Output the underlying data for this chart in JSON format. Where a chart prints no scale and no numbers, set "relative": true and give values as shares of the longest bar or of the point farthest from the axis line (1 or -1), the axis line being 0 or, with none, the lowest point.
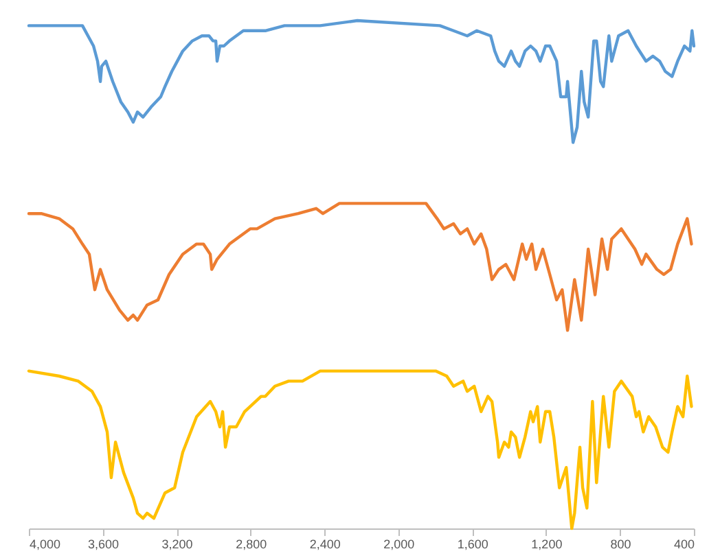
{
  "chart_data": {
    "type": "line",
    "relative": true,
    "tick_labels": "x",
    "grid": false,
    "marker": "none",
    "line_style": "solid",
    "xlim": [
      4000,
      400
    ],
    "xticks": [
      {
        "value": 4000,
        "label": "4,000"
      },
      {
        "value": 3600,
        "label": "3,600"
      },
      {
        "value": 3200,
        "label": "3,200"
      },
      {
        "value": 2800,
        "label": "2,800"
      },
      {
        "value": 2400,
        "label": "2,400"
      },
      {
        "value": 2000,
        "label": "2,000"
      },
      {
        "value": 1600,
        "label": "1,600"
      },
      {
        "value": 1200,
        "label": "1,200"
      },
      {
        "value": 800,
        "label": "800"
      },
      {
        "value": 400,
        "label": "400"
      }
    ],
    "series": [
      {
        "color": "#5b9bd5",
        "x": [
          4000,
          3784,
          3710,
          3650,
          3628,
          3613,
          3606,
          3583,
          3546,
          3502,
          3464,
          3435,
          3412,
          3382,
          3338,
          3286,
          3263,
          3226,
          3167,
          3115,
          3063,
          3025,
          3003,
          2988,
          2981,
          2966,
          2944,
          2914,
          2839,
          2765,
          2720,
          2616,
          2423,
          2222,
          1775,
          1701,
          1627,
          1575,
          1500,
          1478,
          1456,
          1426,
          1389,
          1366,
          1344,
          1314,
          1284,
          1255,
          1232,
          1203,
          1180,
          1143,
          1121,
          1091,
          1084,
          1054,
          1032,
          1009,
          994,
          972,
          942,
          927,
          905,
          890,
          860,
          845,
          808,
          756,
          712,
          659,
          622,
          585,
          555,
          518,
          488,
          451,
          421,
          410,
          400
        ],
        "values": [
          0.99,
          0.99,
          0.99,
          0.95,
          0.92,
          0.88,
          0.91,
          0.92,
          0.88,
          0.84,
          0.82,
          0.8,
          0.82,
          0.81,
          0.83,
          0.85,
          0.87,
          0.9,
          0.94,
          0.96,
          0.97,
          0.97,
          0.96,
          0.96,
          0.92,
          0.95,
          0.95,
          0.96,
          0.98,
          0.98,
          0.98,
          0.99,
          0.99,
          1.0,
          0.99,
          0.98,
          0.97,
          0.98,
          0.97,
          0.94,
          0.92,
          0.91,
          0.94,
          0.92,
          0.91,
          0.94,
          0.95,
          0.94,
          0.92,
          0.95,
          0.95,
          0.92,
          0.85,
          0.85,
          0.88,
          0.76,
          0.79,
          0.9,
          0.84,
          0.81,
          0.96,
          0.96,
          0.88,
          0.87,
          0.97,
          0.92,
          0.97,
          0.98,
          0.95,
          0.92,
          0.93,
          0.92,
          0.9,
          0.89,
          0.92,
          0.95,
          0.94,
          0.98,
          0.95
        ]
      },
      {
        "color": "#ed7d31",
        "x": [
          4000,
          3933,
          3836,
          3762,
          3710,
          3673,
          3643,
          3613,
          3576,
          3509,
          3464,
          3435,
          3412,
          3360,
          3301,
          3241,
          3167,
          3092,
          3055,
          3018,
          3010,
          2981,
          2914,
          2802,
          2765,
          2668,
          2542,
          2445,
          2408,
          2319,
          2170,
          1850,
          1790,
          1753,
          1701,
          1664,
          1627,
          1589,
          1552,
          1522,
          1493,
          1456,
          1418,
          1374,
          1329,
          1307,
          1277,
          1255,
          1218,
          1180,
          1143,
          1113,
          1084,
          1046,
          1009,
          972,
          935,
          898,
          868,
          845,
          793,
          719,
          682,
          659,
          600,
          563,
          526,
          488,
          436,
          413
        ],
        "values": [
          0.62,
          0.62,
          0.61,
          0.59,
          0.56,
          0.54,
          0.47,
          0.51,
          0.47,
          0.43,
          0.41,
          0.42,
          0.41,
          0.44,
          0.45,
          0.5,
          0.54,
          0.56,
          0.56,
          0.54,
          0.51,
          0.53,
          0.56,
          0.59,
          0.59,
          0.61,
          0.62,
          0.63,
          0.62,
          0.64,
          0.64,
          0.64,
          0.61,
          0.59,
          0.6,
          0.58,
          0.59,
          0.56,
          0.58,
          0.55,
          0.49,
          0.51,
          0.52,
          0.49,
          0.56,
          0.53,
          0.56,
          0.51,
          0.55,
          0.5,
          0.45,
          0.47,
          0.39,
          0.49,
          0.41,
          0.55,
          0.46,
          0.57,
          0.51,
          0.57,
          0.59,
          0.55,
          0.52,
          0.54,
          0.51,
          0.5,
          0.51,
          0.56,
          0.61,
          0.56
        ]
      },
      {
        "color": "#ffc000",
        "x": [
          4000,
          3836,
          3732,
          3658,
          3613,
          3576,
          3554,
          3531,
          3487,
          3435,
          3412,
          3382,
          3360,
          3323,
          3263,
          3211,
          3167,
          3092,
          3018,
          2988,
          2966,
          2951,
          2936,
          2914,
          2877,
          2832,
          2743,
          2720,
          2668,
          2594,
          2519,
          2423,
          2274,
          1798,
          1738,
          1701,
          1649,
          1627,
          1589,
          1552,
          1515,
          1493,
          1463,
          1456,
          1426,
          1403,
          1389,
          1366,
          1344,
          1314,
          1284,
          1270,
          1247,
          1232,
          1203,
          1180,
          1158,
          1128,
          1091,
          1061,
          1046,
          1017,
          1002,
          979,
          949,
          927,
          890,
          860,
          830,
          793,
          734,
          712,
          697,
          674,
          645,
          607,
          570,
          540,
          518,
          488,
          459,
          436,
          413
        ],
        "values": [
          0.31,
          0.3,
          0.29,
          0.27,
          0.24,
          0.19,
          0.1,
          0.17,
          0.11,
          0.06,
          0.03,
          0.02,
          0.03,
          0.02,
          0.07,
          0.08,
          0.15,
          0.22,
          0.25,
          0.23,
          0.2,
          0.23,
          0.16,
          0.2,
          0.2,
          0.23,
          0.26,
          0.26,
          0.28,
          0.29,
          0.29,
          0.31,
          0.31,
          0.31,
          0.3,
          0.28,
          0.29,
          0.27,
          0.28,
          0.23,
          0.26,
          0.25,
          0.17,
          0.14,
          0.17,
          0.16,
          0.19,
          0.18,
          0.14,
          0.18,
          0.23,
          0.21,
          0.24,
          0.17,
          0.23,
          0.23,
          0.18,
          0.08,
          0.12,
          0.0,
          0.03,
          0.16,
          0.08,
          0.04,
          0.25,
          0.09,
          0.26,
          0.16,
          0.27,
          0.29,
          0.26,
          0.22,
          0.23,
          0.19,
          0.22,
          0.2,
          0.16,
          0.15,
          0.19,
          0.24,
          0.22,
          0.3,
          0.24
        ]
      }
    ]
  }
}
